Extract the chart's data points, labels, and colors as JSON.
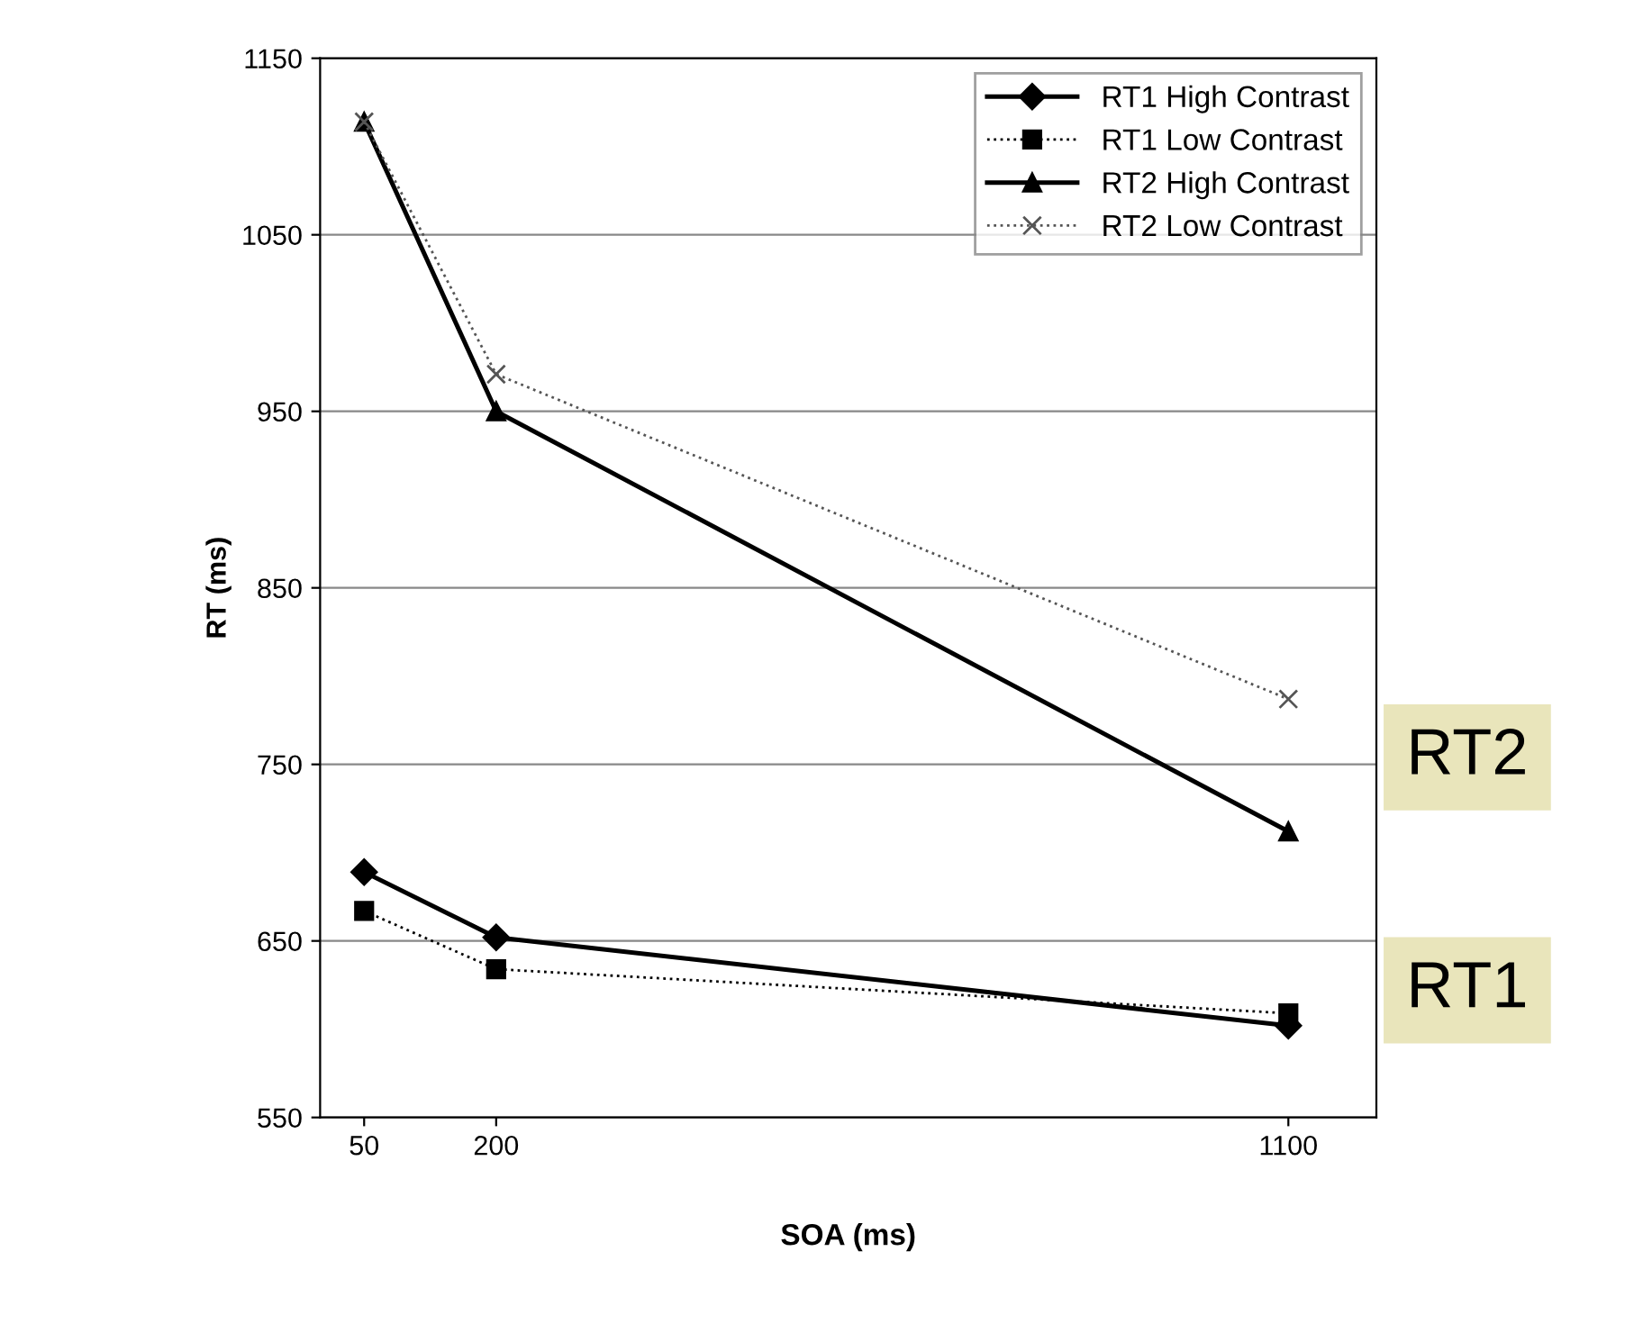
{
  "chart_data": {
    "type": "line",
    "xlabel": "SOA (ms)",
    "ylabel": "RT (ms)",
    "x": [
      50,
      200,
      1100
    ],
    "xlim": [
      0,
      1200
    ],
    "xticks": [
      50,
      200,
      1100
    ],
    "ylim": [
      550,
      1150
    ],
    "yticks": [
      550,
      650,
      750,
      850,
      950,
      1050,
      1150
    ],
    "grid": "y",
    "legend": "top right",
    "series": [
      {
        "name": "RT1 High Contrast",
        "color": "#000000",
        "marker": "diamond",
        "line_style": "solid",
        "values": [
          689,
          652,
          602
        ]
      },
      {
        "name": "RT1 Low Contrast",
        "color": "#000000",
        "marker": "square",
        "line_style": "dotted",
        "values": [
          667,
          634,
          609
        ]
      },
      {
        "name": "RT2 High Contrast",
        "color": "#000000",
        "marker": "triangle",
        "line_style": "solid",
        "values": [
          1114,
          950,
          712
        ]
      },
      {
        "name": "RT2 Low Contrast",
        "color": "#555555",
        "marker": "cross",
        "line_style": "dotted",
        "values": [
          1114,
          971,
          787
        ]
      }
    ],
    "annotations": [
      "RT2",
      "RT1"
    ]
  }
}
